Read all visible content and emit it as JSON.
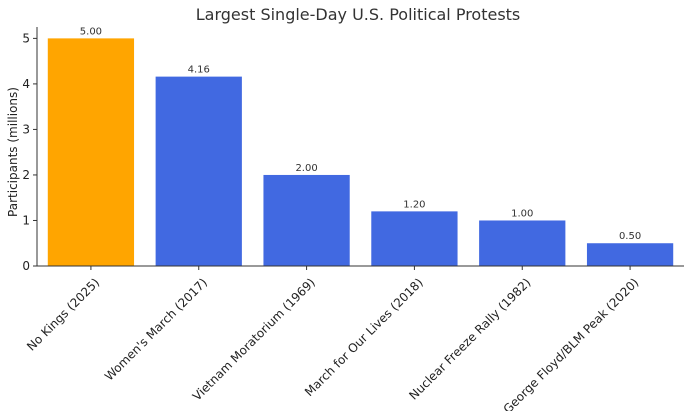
{
  "chart_data": {
    "type": "bar",
    "title": "Largest Single-Day U.S. Political Protests",
    "xlabel": "",
    "ylabel": "Participants (millions)",
    "categories": [
      "No Kings (2025)",
      "Women's March (2017)",
      "Vietnam Moratorium (1969)",
      "March for Our Lives (2018)",
      "Nuclear Freeze Rally (1982)",
      "George Floyd/BLM Peak (2020)"
    ],
    "values": [
      5.0,
      4.16,
      2.0,
      1.2,
      1.0,
      0.5
    ],
    "value_labels": [
      "5.00",
      "4.16",
      "2.00",
      "1.20",
      "1.00",
      "0.50"
    ],
    "bar_colors": [
      "#FFA500",
      "#4169E1",
      "#4169E1",
      "#4169E1",
      "#4169E1",
      "#4169E1"
    ],
    "ylim": [
      0,
      5.25
    ],
    "yticks": [
      0,
      1,
      2,
      3,
      4,
      5
    ],
    "ytick_labels": [
      "0",
      "1",
      "2",
      "3",
      "4",
      "5"
    ],
    "grid": false,
    "legend": "none"
  }
}
